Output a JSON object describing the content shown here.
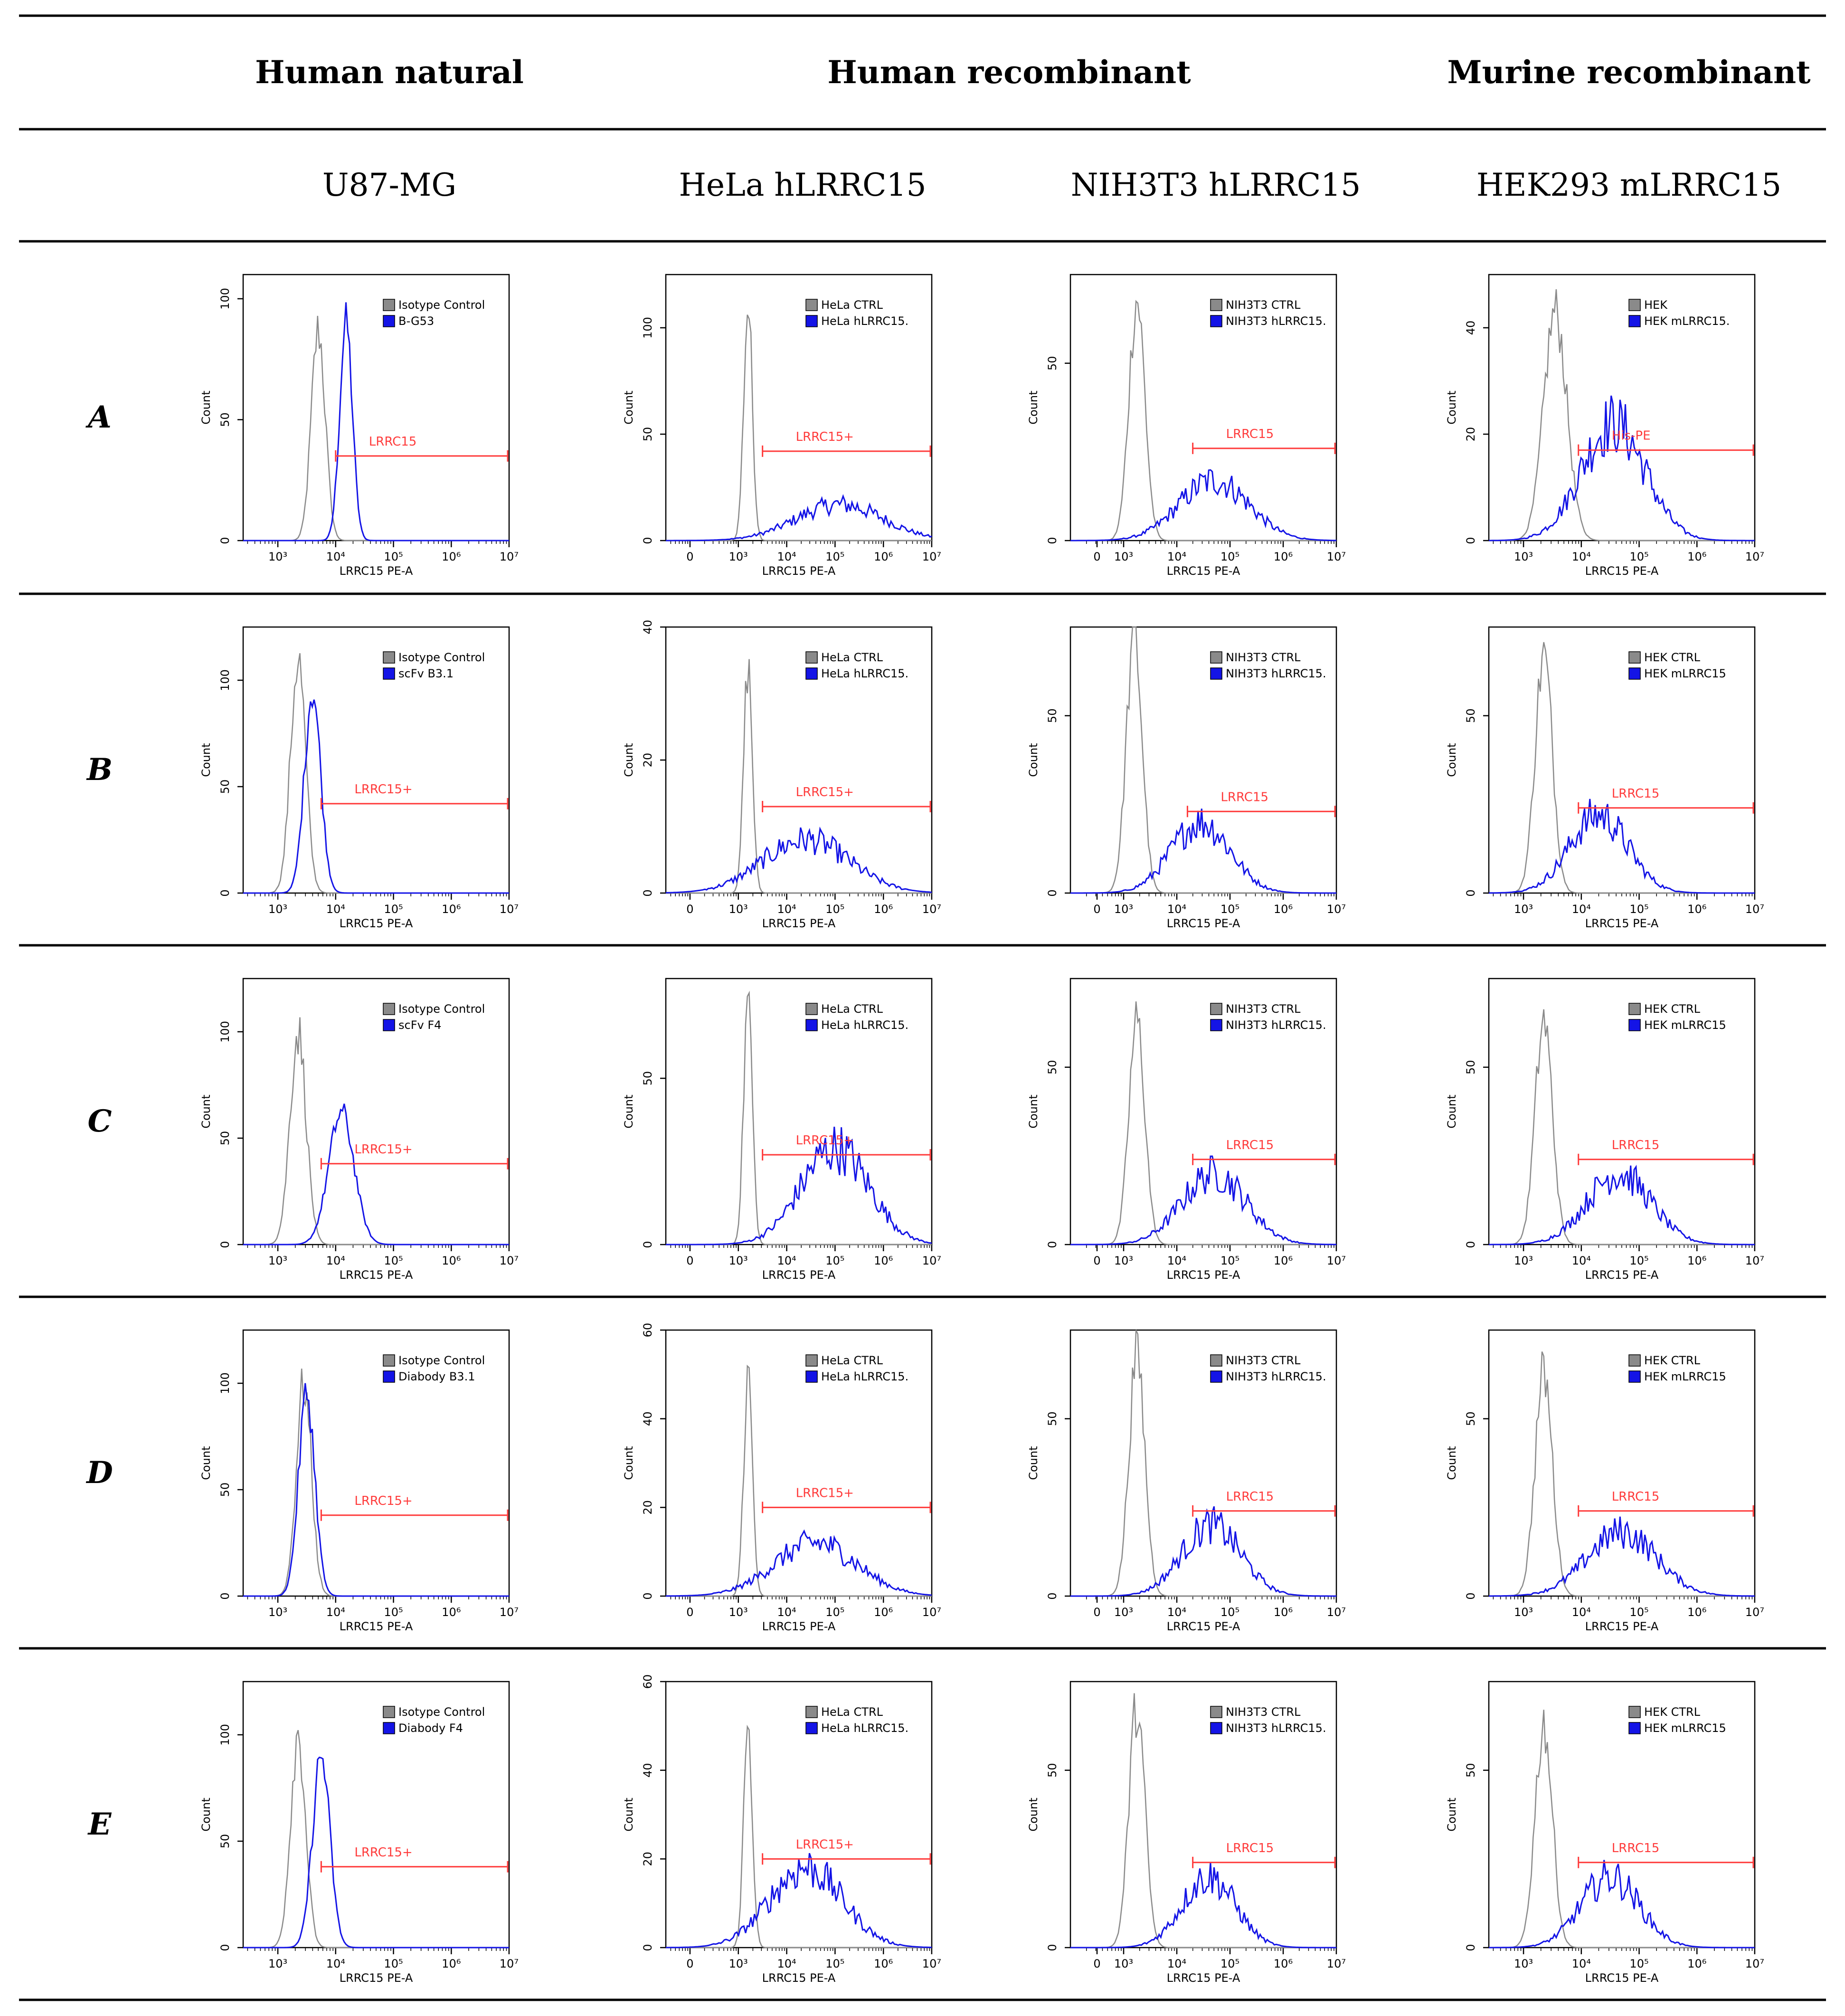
{
  "header": {
    "groups": [
      "Human natural",
      "Human recombinant",
      "Murine recombinant"
    ],
    "cell_lines": [
      "U87-MG",
      "HeLa hLRRC15",
      "NIH3T3 hLRRC15",
      "HEK293 mLRRC15"
    ]
  },
  "colors": {
    "control": "#8a8a8a",
    "sample": "#1414e6",
    "gate": "#ff3b3b",
    "rule": "#000000"
  },
  "x_axis_label": "LRRC15 PE-A",
  "y_axis_label": "Count",
  "x_tick_labels_col1": [
    "10³",
    "10⁴",
    "10⁵",
    "10⁶",
    "10⁷"
  ],
  "x_tick_labels_col2": [
    "0",
    "10³",
    "10⁴",
    "10⁵",
    "10⁶",
    "10⁷"
  ],
  "row_labels": [
    "A",
    "B",
    "C",
    "D",
    "E"
  ],
  "chart_data": [
    {
      "type": "histogram",
      "row": "A",
      "col": 0,
      "legend": [
        "Isotype Control",
        "B-G53"
      ],
      "gate": "LRRC15",
      "yticks": [
        0,
        50,
        100
      ],
      "ylim": [
        0,
        110
      ],
      "xlim": [
        2.4,
        7.0
      ],
      "ctrl": {
        "mu": 3.7,
        "sd": 0.12,
        "peak": 87
      },
      "samp": {
        "mu": 4.18,
        "sd": 0.11,
        "peak": 90
      },
      "gate_range": [
        4.0,
        7.0
      ],
      "gate_y": 35
    },
    {
      "type": "histogram",
      "row": "A",
      "col": 1,
      "legend": [
        "HeLa CTRL",
        "HeLa hLRRC15."
      ],
      "gate": "LRRC15+",
      "yticks": [
        0,
        50,
        100
      ],
      "ylim": [
        0,
        125
      ],
      "xlim": [
        1.5,
        7.0
      ],
      "ctrl": {
        "mu": 3.2,
        "sd": 0.09,
        "peak": 110
      },
      "samp": {
        "mu": 5.1,
        "sd": 0.9,
        "peak": 17
      },
      "gate_range": [
        3.5,
        7.0
      ],
      "gate_y": 42
    },
    {
      "type": "histogram",
      "row": "A",
      "col": 2,
      "legend": [
        "NIH3T3 CTRL",
        "NIH3T3 hLRRC15."
      ],
      "gate": "LRRC15",
      "yticks": [
        0,
        50
      ],
      "ylim": [
        0,
        75
      ],
      "xlim": [
        2.0,
        7.0
      ],
      "ctrl": {
        "mu": 3.25,
        "sd": 0.15,
        "peak": 68
      },
      "samp": {
        "mu": 4.7,
        "sd": 0.65,
        "peak": 17
      },
      "gate_range": [
        4.3,
        7.0
      ],
      "gate_y": 26
    },
    {
      "type": "histogram",
      "row": "A",
      "col": 3,
      "legend": [
        "HEK",
        "HEK mLRRC15."
      ],
      "gate": "His-PE",
      "yticks": [
        0,
        20,
        40
      ],
      "ylim": [
        0,
        50
      ],
      "xlim": [
        2.4,
        7.0
      ],
      "ctrl": {
        "mu": 3.55,
        "sd": 0.2,
        "peak": 43
      },
      "samp": {
        "mu": 4.55,
        "sd": 0.55,
        "peak": 22
      },
      "gate_range": [
        3.95,
        7.0
      ],
      "gate_y": 17
    },
    {
      "type": "histogram",
      "row": "B",
      "col": 0,
      "legend": [
        "Isotype Control",
        "scFv B3.1"
      ],
      "gate": "LRRC15+",
      "yticks": [
        0,
        50,
        100
      ],
      "ylim": [
        0,
        125
      ],
      "xlim": [
        2.4,
        7.0
      ],
      "ctrl": {
        "mu": 3.35,
        "sd": 0.13,
        "peak": 110
      },
      "samp": {
        "mu": 3.6,
        "sd": 0.14,
        "peak": 95
      },
      "gate_range": [
        3.75,
        7.0
      ],
      "gate_y": 42
    },
    {
      "type": "histogram",
      "row": "B",
      "col": 1,
      "legend": [
        "HeLa CTRL",
        "HeLa hLRRC15."
      ],
      "gate": "LRRC15+",
      "yticks": [
        0,
        20,
        40
      ],
      "ylim": [
        0,
        40
      ],
      "xlim": [
        1.5,
        7.0
      ],
      "ctrl": {
        "mu": 3.2,
        "sd": 0.09,
        "peak": 34
      },
      "samp": {
        "mu": 4.4,
        "sd": 0.9,
        "peak": 8
      },
      "gate_range": [
        3.5,
        7.0
      ],
      "gate_y": 13
    },
    {
      "type": "histogram",
      "row": "B",
      "col": 2,
      "legend": [
        "NIH3T3 CTRL",
        "NIH3T3 hLRRC15."
      ],
      "gate": "LRRC15",
      "yticks": [
        0,
        50
      ],
      "ylim": [
        0,
        75
      ],
      "xlim": [
        2.0,
        7.0
      ],
      "ctrl": {
        "mu": 3.2,
        "sd": 0.15,
        "peak": 72
      },
      "samp": {
        "mu": 4.45,
        "sd": 0.55,
        "peak": 20
      },
      "gate_range": [
        4.2,
        7.0
      ],
      "gate_y": 23
    },
    {
      "type": "histogram",
      "row": "B",
      "col": 3,
      "legend": [
        "HEK CTRL",
        "HEK mLRRC15"
      ],
      "gate": "LRRC15",
      "yticks": [
        0,
        50
      ],
      "ylim": [
        0,
        75
      ],
      "xlim": [
        2.4,
        7.0
      ],
      "ctrl": {
        "mu": 3.35,
        "sd": 0.15,
        "peak": 67
      },
      "samp": {
        "mu": 4.3,
        "sd": 0.5,
        "peak": 22
      },
      "gate_range": [
        3.95,
        7.0
      ],
      "gate_y": 24
    },
    {
      "type": "histogram",
      "row": "C",
      "col": 0,
      "legend": [
        "Isotype Control",
        "scFv F4"
      ],
      "gate": "LRRC15+",
      "yticks": [
        0,
        50,
        100
      ],
      "ylim": [
        0,
        125
      ],
      "xlim": [
        2.4,
        7.0
      ],
      "ctrl": {
        "mu": 3.35,
        "sd": 0.14,
        "peak": 100
      },
      "samp": {
        "mu": 4.1,
        "sd": 0.22,
        "peak": 62
      },
      "gate_range": [
        3.75,
        7.0
      ],
      "gate_y": 38
    },
    {
      "type": "histogram",
      "row": "C",
      "col": 1,
      "legend": [
        "HeLa CTRL",
        "HeLa hLRRC15."
      ],
      "gate": "LRRC15+",
      "yticks": [
        0,
        50
      ],
      "ylim": [
        0,
        80
      ],
      "xlim": [
        1.5,
        7.0
      ],
      "ctrl": {
        "mu": 3.2,
        "sd": 0.09,
        "peak": 75
      },
      "samp": {
        "mu": 5.0,
        "sd": 0.7,
        "peak": 29
      },
      "gate_range": [
        3.5,
        7.0
      ],
      "gate_y": 27
    },
    {
      "type": "histogram",
      "row": "C",
      "col": 2,
      "legend": [
        "NIH3T3 CTRL",
        "NIH3T3 hLRRC15."
      ],
      "gate": "LRRC15",
      "yticks": [
        0,
        50
      ],
      "ylim": [
        0,
        75
      ],
      "xlim": [
        2.0,
        7.0
      ],
      "ctrl": {
        "mu": 3.25,
        "sd": 0.15,
        "peak": 63
      },
      "samp": {
        "mu": 4.7,
        "sd": 0.6,
        "peak": 20
      },
      "gate_range": [
        4.3,
        7.0
      ],
      "gate_y": 24
    },
    {
      "type": "histogram",
      "row": "C",
      "col": 3,
      "legend": [
        "HEK CTRL",
        "HEK mLRRC15"
      ],
      "gate": "LRRC15",
      "yticks": [
        0,
        50
      ],
      "ylim": [
        0,
        75
      ],
      "xlim": [
        2.4,
        7.0
      ],
      "ctrl": {
        "mu": 3.35,
        "sd": 0.15,
        "peak": 63
      },
      "samp": {
        "mu": 4.65,
        "sd": 0.55,
        "peak": 20
      },
      "gate_range": [
        3.95,
        7.0
      ],
      "gate_y": 24
    },
    {
      "type": "histogram",
      "row": "D",
      "col": 0,
      "legend": [
        "Isotype Control",
        "Diabody B3.1"
      ],
      "gate": "LRRC15+",
      "yticks": [
        0,
        50,
        100
      ],
      "ylim": [
        0,
        125
      ],
      "xlim": [
        2.4,
        7.0
      ],
      "ctrl": {
        "mu": 3.45,
        "sd": 0.13,
        "peak": 100
      },
      "samp": {
        "mu": 3.5,
        "sd": 0.14,
        "peak": 95
      },
      "gate_range": [
        3.75,
        7.0
      ],
      "gate_y": 38
    },
    {
      "type": "histogram",
      "row": "D",
      "col": 1,
      "legend": [
        "HeLa CTRL",
        "HeLa hLRRC15."
      ],
      "gate": "LRRC15+",
      "yticks": [
        0,
        20,
        40,
        60
      ],
      "ylim": [
        0,
        60
      ],
      "xlim": [
        1.5,
        7.0
      ],
      "ctrl": {
        "mu": 3.2,
        "sd": 0.09,
        "peak": 50
      },
      "samp": {
        "mu": 4.6,
        "sd": 0.85,
        "peak": 12
      },
      "gate_range": [
        3.5,
        7.0
      ],
      "gate_y": 20
    },
    {
      "type": "histogram",
      "row": "D",
      "col": 2,
      "legend": [
        "NIH3T3 CTRL",
        "NIH3T3 hLRRC15."
      ],
      "gate": "LRRC15",
      "yticks": [
        0,
        50
      ],
      "ylim": [
        0,
        75
      ],
      "xlim": [
        2.0,
        7.0
      ],
      "ctrl": {
        "mu": 3.25,
        "sd": 0.15,
        "peak": 68
      },
      "samp": {
        "mu": 4.65,
        "sd": 0.55,
        "peak": 20
      },
      "gate_range": [
        4.3,
        7.0
      ],
      "gate_y": 24
    },
    {
      "type": "histogram",
      "row": "D",
      "col": 3,
      "legend": [
        "HEK CTRL",
        "HEK mLRRC15"
      ],
      "gate": "LRRC15",
      "yticks": [
        0,
        50
      ],
      "ylim": [
        0,
        75
      ],
      "xlim": [
        2.4,
        7.0
      ],
      "ctrl": {
        "mu": 3.35,
        "sd": 0.15,
        "peak": 63
      },
      "samp": {
        "mu": 4.7,
        "sd": 0.6,
        "peak": 18
      },
      "gate_range": [
        3.95,
        7.0
      ],
      "gate_y": 24
    },
    {
      "type": "histogram",
      "row": "E",
      "col": 0,
      "legend": [
        "Isotype Control",
        "Diabody F4"
      ],
      "gate": "LRRC15+",
      "yticks": [
        0,
        50,
        100
      ],
      "ylim": [
        0,
        125
      ],
      "xlim": [
        2.4,
        7.0
      ],
      "ctrl": {
        "mu": 3.35,
        "sd": 0.13,
        "peak": 100
      },
      "samp": {
        "mu": 3.75,
        "sd": 0.15,
        "peak": 90
      },
      "gate_range": [
        3.75,
        7.0
      ],
      "gate_y": 38
    },
    {
      "type": "histogram",
      "row": "E",
      "col": 1,
      "legend": [
        "HeLa CTRL",
        "HeLa hLRRC15."
      ],
      "gate": "LRRC15+",
      "yticks": [
        0,
        20,
        40,
        60
      ],
      "ylim": [
        0,
        60
      ],
      "xlim": [
        1.5,
        7.0
      ],
      "ctrl": {
        "mu": 3.2,
        "sd": 0.09,
        "peak": 50
      },
      "samp": {
        "mu": 4.4,
        "sd": 0.75,
        "peak": 18
      },
      "gate_range": [
        3.5,
        7.0
      ],
      "gate_y": 20
    },
    {
      "type": "histogram",
      "row": "E",
      "col": 2,
      "legend": [
        "NIH3T3 CTRL",
        "NIH3T3 hLRRC15."
      ],
      "gate": "LRRC15",
      "yticks": [
        0,
        50
      ],
      "ylim": [
        0,
        75
      ],
      "xlim": [
        2.0,
        7.0
      ],
      "ctrl": {
        "mu": 3.25,
        "sd": 0.15,
        "peak": 68
      },
      "samp": {
        "mu": 4.6,
        "sd": 0.5,
        "peak": 20
      },
      "gate_range": [
        4.3,
        7.0
      ],
      "gate_y": 24
    },
    {
      "type": "histogram",
      "row": "E",
      "col": 3,
      "legend": [
        "HEK CTRL",
        "HEK mLRRC15"
      ],
      "gate": "LRRC15",
      "yticks": [
        0,
        50
      ],
      "ylim": [
        0,
        75
      ],
      "xlim": [
        2.4,
        7.0
      ],
      "ctrl": {
        "mu": 3.35,
        "sd": 0.15,
        "peak": 63
      },
      "samp": {
        "mu": 4.5,
        "sd": 0.5,
        "peak": 20
      },
      "gate_range": [
        3.95,
        7.0
      ],
      "gate_y": 24
    }
  ]
}
